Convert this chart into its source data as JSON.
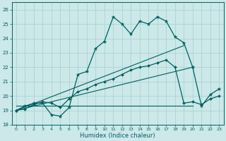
{
  "xlabel": "Humidex (Indice chaleur)",
  "xlim": [
    -0.5,
    23.5
  ],
  "ylim": [
    18,
    26.5
  ],
  "yticks": [
    18,
    19,
    20,
    21,
    22,
    23,
    24,
    25,
    26
  ],
  "xticks": [
    0,
    1,
    2,
    3,
    4,
    5,
    6,
    7,
    8,
    9,
    10,
    11,
    12,
    13,
    14,
    15,
    16,
    17,
    18,
    19,
    20,
    21,
    22,
    23
  ],
  "bg_color": "#cce8e8",
  "grid_color": "#aad4d4",
  "line_color": "#006060",
  "line1_x": [
    0,
    1,
    2,
    3,
    4,
    5,
    6,
    7,
    8,
    9,
    10,
    11,
    12,
    13,
    14,
    15,
    16,
    17,
    18,
    19,
    20,
    21,
    22,
    23
  ],
  "line1_y": [
    19.0,
    19.3,
    19.5,
    19.5,
    18.7,
    18.6,
    19.2,
    21.5,
    21.7,
    23.3,
    23.8,
    25.5,
    25.0,
    24.3,
    25.2,
    25.0,
    25.5,
    25.2,
    24.1,
    23.7,
    22.0,
    19.3,
    20.1,
    20.5
  ],
  "line2_x": [
    0,
    1,
    2,
    3,
    4,
    5,
    6,
    7,
    8,
    9,
    10,
    11,
    12,
    13,
    14,
    15,
    16,
    17,
    18,
    19,
    20,
    21,
    22,
    23
  ],
  "line2_y": [
    19.0,
    19.1,
    19.4,
    19.6,
    19.5,
    19.2,
    19.8,
    20.3,
    20.5,
    20.8,
    21.0,
    21.2,
    21.5,
    21.8,
    22.0,
    22.1,
    22.3,
    22.5,
    22.0,
    19.5,
    19.6,
    19.4,
    19.8,
    20.0
  ],
  "line3_x": [
    0,
    19
  ],
  "line3_y": [
    19.0,
    23.5
  ],
  "line4_x": [
    0,
    20
  ],
  "line4_y": [
    19.0,
    22.0
  ],
  "line5_x": [
    0,
    20
  ],
  "line5_y": [
    19.3,
    19.3
  ]
}
